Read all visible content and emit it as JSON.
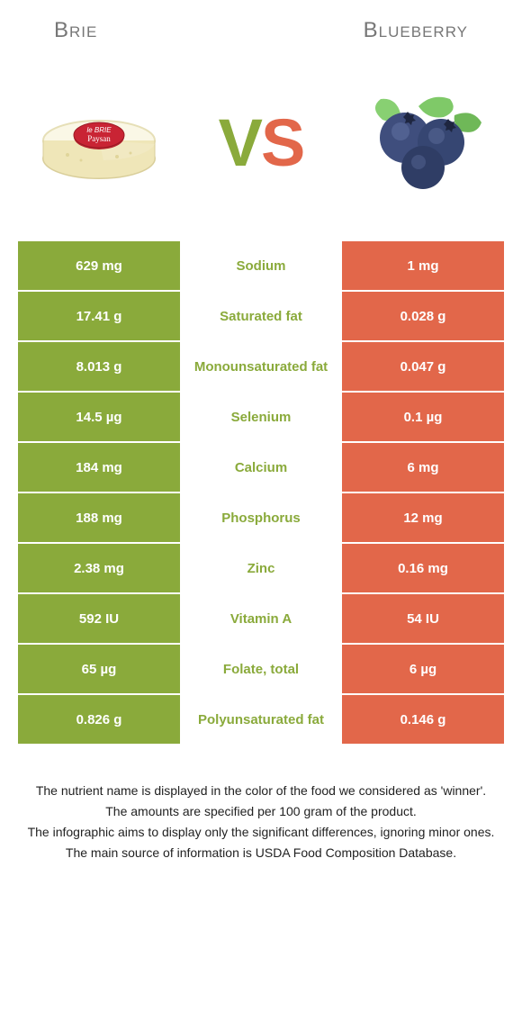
{
  "colors": {
    "green": "#8aaa3b",
    "orange": "#e2674a",
    "white": "#ffffff",
    "grayText": "#777777"
  },
  "header": {
    "left": "Brie",
    "right": "Blueberry"
  },
  "vs": {
    "v": "V",
    "s": "S"
  },
  "rows": [
    {
      "left": "629 mg",
      "label": "Sodium",
      "right": "1 mg",
      "winner": "left"
    },
    {
      "left": "17.41 g",
      "label": "Saturated fat",
      "right": "0.028 g",
      "winner": "left"
    },
    {
      "left": "8.013 g",
      "label": "Monounsaturated fat",
      "right": "0.047 g",
      "winner": "left"
    },
    {
      "left": "14.5 µg",
      "label": "Selenium",
      "right": "0.1 µg",
      "winner": "left"
    },
    {
      "left": "184 mg",
      "label": "Calcium",
      "right": "6 mg",
      "winner": "left"
    },
    {
      "left": "188 mg",
      "label": "Phosphorus",
      "right": "12 mg",
      "winner": "left"
    },
    {
      "left": "2.38 mg",
      "label": "Zinc",
      "right": "0.16 mg",
      "winner": "left"
    },
    {
      "left": "592 IU",
      "label": "Vitamin A",
      "right": "54 IU",
      "winner": "left"
    },
    {
      "left": "65 µg",
      "label": "Folate, total",
      "right": "6 µg",
      "winner": "left"
    },
    {
      "left": "0.826 g",
      "label": "Polyunsaturated fat",
      "right": "0.146 g",
      "winner": "left"
    }
  ],
  "notes": [
    "The nutrient name is displayed in the color of the food we considered as 'winner'.",
    "The amounts are specified per 100 gram of the product.",
    "The infographic aims to display only the significant differences, ignoring minor ones.",
    "The main source of information is USDA Food Composition Database."
  ]
}
